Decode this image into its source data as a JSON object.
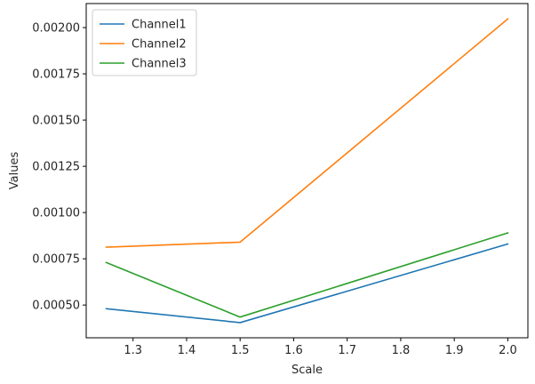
{
  "chart_data": {
    "type": "line",
    "title": "",
    "xlabel": "Scale",
    "ylabel": "Values",
    "x": [
      1.25,
      1.5,
      2.0
    ],
    "series": [
      {
        "name": "Channel1",
        "color": "#1f77b4",
        "values": [
          0.00048,
          0.000405,
          0.00083
        ]
      },
      {
        "name": "Channel2",
        "color": "#ff7f0e",
        "values": [
          0.000813,
          0.00084,
          0.002047
        ]
      },
      {
        "name": "Channel3",
        "color": "#2ca02c",
        "values": [
          0.00073,
          0.000435,
          0.00089
        ]
      }
    ],
    "xlim": [
      1.2125,
      2.0375
    ],
    "ylim": [
      0.000323,
      0.00213
    ],
    "xticks": [
      1.3,
      1.4,
      1.5,
      1.6,
      1.7,
      1.8,
      1.9,
      2.0
    ],
    "xtick_labels": [
      "1.3",
      "1.4",
      "1.5",
      "1.6",
      "1.7",
      "1.8",
      "1.9",
      "2.0"
    ],
    "yticks": [
      0.0005,
      0.00075,
      0.001,
      0.00125,
      0.0015,
      0.00175,
      0.002
    ],
    "ytick_labels": [
      "0.00050",
      "0.00075",
      "0.00100",
      "0.00125",
      "0.00150",
      "0.00175",
      "0.00200"
    ],
    "grid": false,
    "legend_position": "top-left"
  }
}
